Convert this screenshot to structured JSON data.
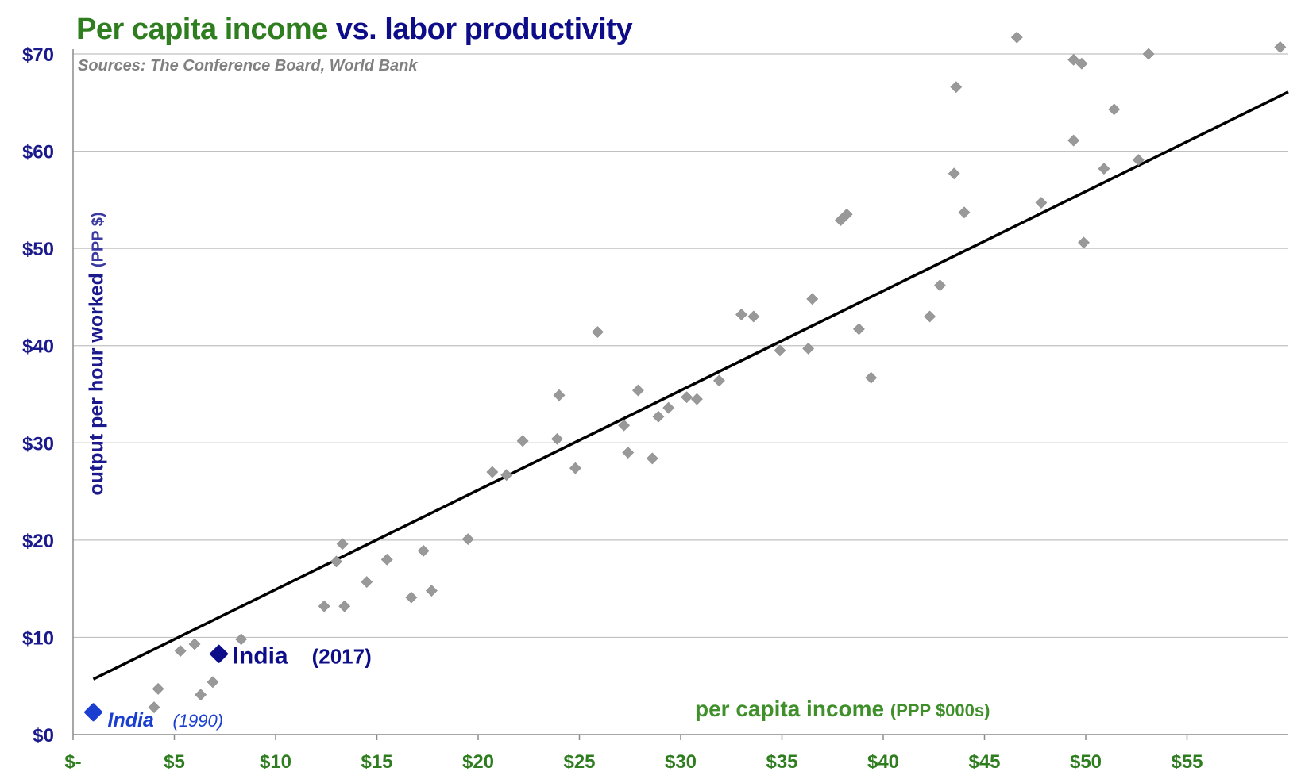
{
  "header": {
    "title_green": "Per capita income",
    "title_vs": "vs.",
    "title_blue": "labor productivity",
    "sources": "Sources: The Conference Board, World Bank"
  },
  "colors": {
    "title_green": "#2e7d1e",
    "title_blue": "#0d0d8a",
    "y_tick_color": "#1a1a8c",
    "x_tick_color": "#2e7d1e",
    "point_color": "#999999",
    "india_2017_color": "#0d0d8a",
    "india_1990_color": "#1a3fd0",
    "trend_color": "#000000",
    "grid_color": "#c0c0c0"
  },
  "chart_data": {
    "type": "scatter",
    "title": "Per capita income vs. labor productivity",
    "subtitle": "Sources: The Conference Board, World Bank",
    "xlabel": "per capita income",
    "xlabel_unit": "(PPP $000s)",
    "ylabel": "output per hour worked",
    "ylabel_unit": "(PPP $)",
    "xlim": [
      0,
      60
    ],
    "ylim": [
      0,
      70
    ],
    "x_ticks": [
      {
        "value": 0,
        "label": "$-"
      },
      {
        "value": 5,
        "label": "$5"
      },
      {
        "value": 10,
        "label": "$10"
      },
      {
        "value": 15,
        "label": "$15"
      },
      {
        "value": 20,
        "label": "$20"
      },
      {
        "value": 25,
        "label": "$25"
      },
      {
        "value": 30,
        "label": "$30"
      },
      {
        "value": 35,
        "label": "$35"
      },
      {
        "value": 40,
        "label": "$40"
      },
      {
        "value": 45,
        "label": "$45"
      },
      {
        "value": 50,
        "label": "$50"
      },
      {
        "value": 55,
        "label": "$55"
      }
    ],
    "y_ticks": [
      {
        "value": 0,
        "label": "$0"
      },
      {
        "value": 10,
        "label": "$10"
      },
      {
        "value": 20,
        "label": "$20"
      },
      {
        "value": 30,
        "label": "$30"
      },
      {
        "value": 40,
        "label": "$40"
      },
      {
        "value": 50,
        "label": "$50"
      },
      {
        "value": 60,
        "label": "$60"
      },
      {
        "value": 70,
        "label": "$70"
      }
    ],
    "grid": "horizontal",
    "points": [
      [
        4.0,
        2.8
      ],
      [
        4.2,
        4.7
      ],
      [
        5.3,
        8.6
      ],
      [
        6.0,
        9.3
      ],
      [
        6.3,
        4.1
      ],
      [
        6.9,
        5.4
      ],
      [
        8.3,
        9.8
      ],
      [
        12.4,
        13.2
      ],
      [
        13.0,
        17.8
      ],
      [
        13.3,
        19.6
      ],
      [
        13.4,
        13.2
      ],
      [
        14.5,
        15.7
      ],
      [
        15.5,
        18.0
      ],
      [
        16.7,
        14.1
      ],
      [
        17.3,
        18.9
      ],
      [
        17.7,
        14.8
      ],
      [
        19.5,
        20.1
      ],
      [
        20.7,
        27.0
      ],
      [
        21.4,
        26.7
      ],
      [
        22.2,
        30.2
      ],
      [
        23.9,
        30.4
      ],
      [
        24.0,
        34.9
      ],
      [
        24.8,
        27.4
      ],
      [
        25.9,
        41.4
      ],
      [
        27.2,
        31.8
      ],
      [
        27.4,
        29.0
      ],
      [
        27.9,
        35.4
      ],
      [
        28.6,
        28.4
      ],
      [
        28.9,
        32.7
      ],
      [
        29.4,
        33.6
      ],
      [
        30.3,
        34.7
      ],
      [
        30.8,
        34.5
      ],
      [
        31.9,
        36.4
      ],
      [
        33.0,
        43.2
      ],
      [
        33.6,
        43.0
      ],
      [
        34.9,
        39.5
      ],
      [
        36.3,
        39.7
      ],
      [
        36.5,
        44.8
      ],
      [
        37.9,
        52.9
      ],
      [
        38.2,
        53.5
      ],
      [
        38.8,
        41.7
      ],
      [
        39.4,
        36.7
      ],
      [
        42.3,
        43.0
      ],
      [
        42.8,
        46.2
      ],
      [
        43.5,
        57.7
      ],
      [
        43.6,
        66.6
      ],
      [
        44.0,
        53.7
      ],
      [
        46.6,
        71.7
      ],
      [
        47.8,
        54.7
      ],
      [
        49.4,
        61.1
      ],
      [
        49.4,
        69.4
      ],
      [
        49.8,
        69.0
      ],
      [
        49.9,
        50.6
      ],
      [
        50.9,
        58.2
      ],
      [
        51.4,
        64.3
      ],
      [
        52.6,
        59.1
      ],
      [
        53.1,
        70.0
      ],
      [
        59.6,
        70.7
      ]
    ],
    "trendline": {
      "x": [
        1.0,
        60.0
      ],
      "y": [
        5.7,
        66.1
      ]
    },
    "highlights": [
      {
        "label": "India",
        "year": "(2017)",
        "x": 7.2,
        "y": 8.3
      },
      {
        "label": "India",
        "year": "(1990)",
        "x": 1.0,
        "y": 2.3
      }
    ]
  }
}
